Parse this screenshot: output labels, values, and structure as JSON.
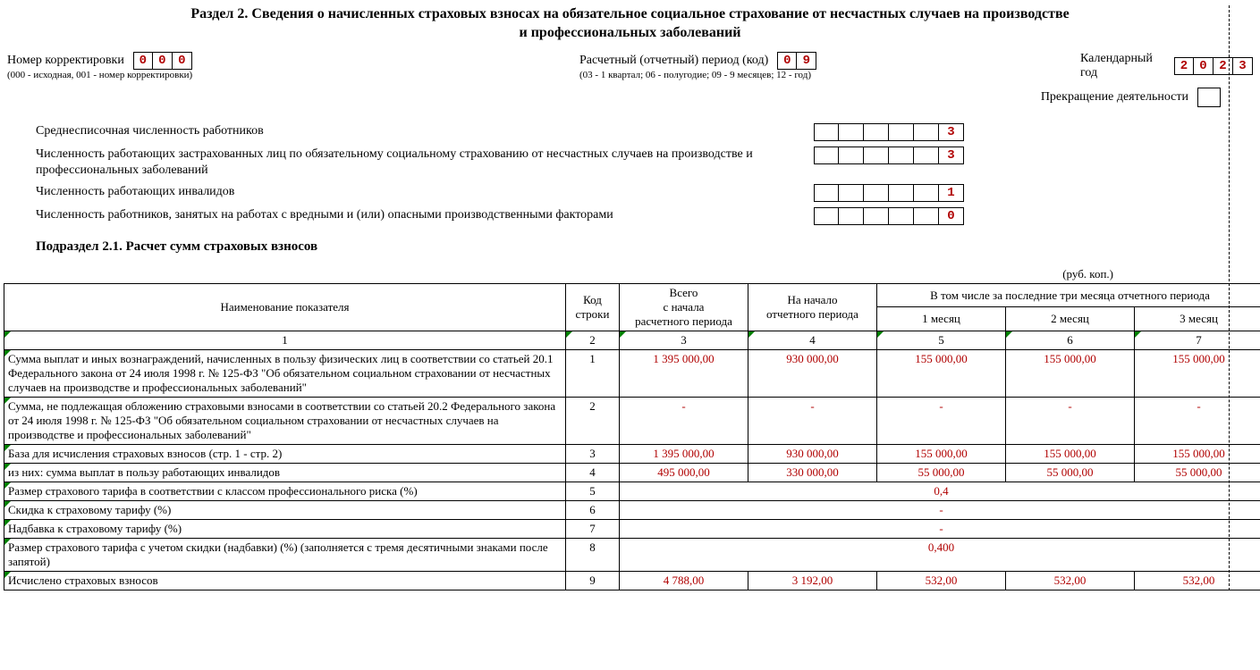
{
  "title_line1": "Раздел 2. Сведения о начисленных страховых взносах на обязательное социальное страхование от несчастных случаев на производстве",
  "title_line2": "и профессиональных заболеваний",
  "header": {
    "corr_label": "Номер корректировки",
    "corr_sub": "(000 - исходная, 001 - номер корректировки)",
    "corr_cells": [
      "0",
      "0",
      "0"
    ],
    "period_label": "Расчетный (отчетный) период (код)",
    "period_sub": "(03 - 1 квартал; 06 - полугодие; 09 - 9 месяцев; 12 - год)",
    "period_cells": [
      "0",
      "9"
    ],
    "year_label": "Календарный год",
    "year_cells": [
      "2",
      "0",
      "2",
      "3"
    ],
    "stop_label": "Прекращение деятельности"
  },
  "info": {
    "r1_label": "Среднесписочная численность работников",
    "r1_val": [
      "",
      "",
      "",
      "",
      "",
      "3"
    ],
    "r2_label": "Численность работающих застрахованных лиц по обязательному социальному страхованию от несчастных случаев на производстве и профессиональных заболеваний",
    "r2_val": [
      "",
      "",
      "",
      "",
      "",
      "3"
    ],
    "r3_label": "Численность работающих инвалидов",
    "r3_val": [
      "",
      "",
      "",
      "",
      "",
      "1"
    ],
    "r4_label": "Численность работников, занятых на работах с вредными и (или) опасными производственными факторами",
    "r4_val": [
      "",
      "",
      "",
      "",
      "",
      "0"
    ]
  },
  "sub_title": "Подраздел 2.1. Расчет сумм страховых взносов",
  "unit": "(руб. коп.)",
  "table": {
    "head": {
      "name": "Наименование показателя",
      "code": "Код строки",
      "total": "Всего\nс начала\nрасчетного периода",
      "start": "На начало\nотчетного периода",
      "last3": "В том числе за последние три месяца отчетного периода",
      "m1": "1 месяц",
      "m2": "2 месяц",
      "m3": "3 месяц",
      "nums": [
        "1",
        "2",
        "3",
        "4",
        "5",
        "6",
        "7"
      ]
    },
    "rows": [
      {
        "name": "Сумма выплат и иных вознаграждений, начисленных в пользу физических лиц в соответствии со статьей 20.1 Федерального закона от 24 июля 1998 г. № 125-ФЗ \"Об обязательном социальном страховании от несчастных случаев на производстве и профессиональных заболеваний\"",
        "code": "1",
        "v": [
          "1 395 000,00",
          "930 000,00",
          "155 000,00",
          "155 000,00",
          "155 000,00"
        ]
      },
      {
        "name": "Сумма, не подлежащая обложению страховыми взносами в соответствии со статьей 20.2 Федерального закона от 24 июля 1998 г. № 125-ФЗ \"Об обязательном социальном страховании от несчастных случаев на производстве и профессиональных заболеваний\"",
        "code": "2",
        "v": [
          "-",
          "-",
          "-",
          "-",
          "-"
        ]
      },
      {
        "name": "База для исчисления страховых взносов (стр. 1 - стр. 2)",
        "code": "3",
        "v": [
          "1 395 000,00",
          "930 000,00",
          "155 000,00",
          "155 000,00",
          "155 000,00"
        ]
      },
      {
        "name": "из них: сумма выплат в пользу работающих инвалидов",
        "code": "4",
        "v": [
          "495 000,00",
          "330 000,00",
          "55 000,00",
          "55 000,00",
          "55 000,00"
        ]
      },
      {
        "name": "Размер страхового тарифа в соответствии с классом профессионального риска (%)",
        "code": "5",
        "v": [
          "0,4"
        ],
        "merged": true
      },
      {
        "name": "Скидка к страховому тарифу (%)",
        "code": "6",
        "v": [
          "-"
        ],
        "merged": true
      },
      {
        "name": "Надбавка к страховому тарифу (%)",
        "code": "7",
        "v": [
          "-"
        ],
        "merged": true
      },
      {
        "name": "Размер страхового тарифа с учетом скидки (надбавки) (%) (заполняется с тремя десятичными знаками после запятой)",
        "code": "8",
        "v": [
          "0,400"
        ],
        "merged": true
      },
      {
        "name": "Исчислено страховых взносов",
        "code": "9",
        "v": [
          "4 788,00",
          "3 192,00",
          "532,00",
          "532,00",
          "532,00"
        ]
      }
    ]
  }
}
